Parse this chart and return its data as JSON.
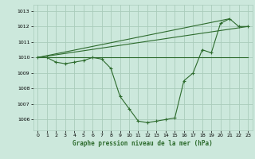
{
  "title": "Graphe pression niveau de la mer (hPa)",
  "background_color": "#cce8dc",
  "grid_color": "#aaccbb",
  "line_color": "#2d6b2d",
  "x_ticks": [
    0,
    1,
    2,
    3,
    4,
    5,
    6,
    7,
    8,
    9,
    10,
    11,
    12,
    13,
    14,
    15,
    16,
    17,
    18,
    19,
    20,
    21,
    22,
    23
  ],
  "y_ticks": [
    1006,
    1007,
    1008,
    1009,
    1010,
    1011,
    1012,
    1013
  ],
  "ylim": [
    1005.3,
    1013.4
  ],
  "xlim": [
    -0.5,
    23.5
  ],
  "series1": {
    "x": [
      0,
      1,
      2,
      3,
      4,
      5,
      6,
      7,
      8,
      9,
      10,
      11,
      12,
      13,
      14,
      15,
      16,
      17,
      18,
      19,
      20,
      21,
      22,
      23
    ],
    "y": [
      1010.0,
      1010.0,
      1009.7,
      1009.6,
      1009.7,
      1009.8,
      1010.0,
      1009.9,
      1009.3,
      1007.5,
      1006.7,
      1005.9,
      1005.8,
      1005.9,
      1006.0,
      1006.1,
      1008.5,
      1009.0,
      1010.5,
      1010.3,
      1012.2,
      1012.5,
      1012.0,
      1012.0
    ]
  },
  "series2": {
    "x": [
      0,
      23
    ],
    "y": [
      1010.0,
      1010.0
    ]
  },
  "series3": {
    "x": [
      0,
      21
    ],
    "y": [
      1010.0,
      1012.5
    ]
  },
  "series4": {
    "x": [
      0,
      23
    ],
    "y": [
      1010.0,
      1012.0
    ]
  }
}
